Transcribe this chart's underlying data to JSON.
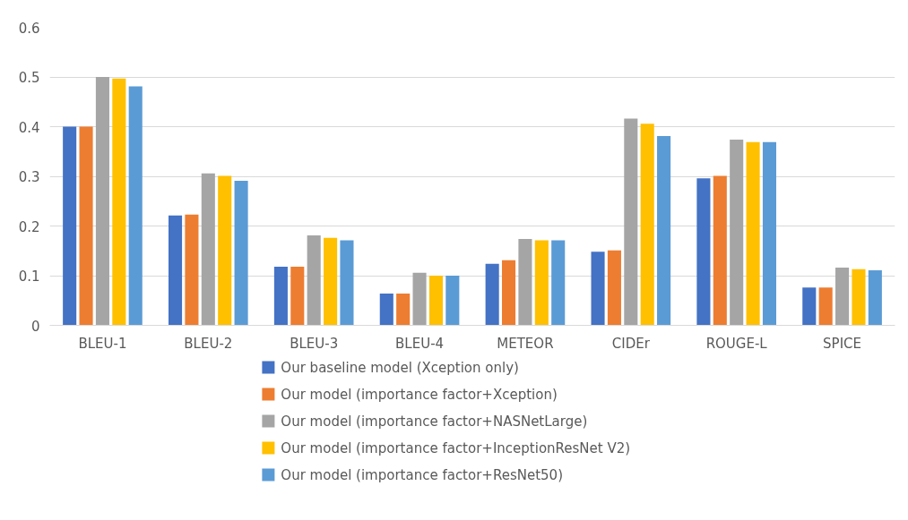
{
  "chart_data": {
    "type": "bar",
    "categories": [
      "BLEU-1",
      "BLEU-2",
      "BLEU-3",
      "BLEU-4",
      "METEOR",
      "CIDEr",
      "ROUGE-L",
      "SPICE"
    ],
    "series": [
      {
        "name": "Our baseline model (Xception only)",
        "color": "#4472c4",
        "values": [
          0.4,
          0.221,
          0.118,
          0.064,
          0.124,
          0.148,
          0.296,
          0.076
        ]
      },
      {
        "name": "Our model (importance factor+Xception)",
        "color": "#ed7d31",
        "values": [
          0.4,
          0.223,
          0.118,
          0.064,
          0.131,
          0.151,
          0.301,
          0.076
        ]
      },
      {
        "name": "Our model (importance factor+NASNetLarge)",
        "color": "#a5a5a5",
        "values": [
          0.5,
          0.306,
          0.181,
          0.106,
          0.174,
          0.416,
          0.374,
          0.116
        ]
      },
      {
        "name": "Our model (importance factor+InceptionResNet V2)",
        "color": "#ffc000",
        "values": [
          0.497,
          0.301,
          0.176,
          0.1,
          0.171,
          0.406,
          0.369,
          0.113
        ]
      },
      {
        "name": "Our model (importance factor+ResNet50)",
        "color": "#5b9bd5",
        "values": [
          0.481,
          0.291,
          0.171,
          0.1,
          0.171,
          0.381,
          0.369,
          0.111
        ]
      }
    ],
    "ylim": [
      0,
      0.6
    ],
    "yticks": [
      0,
      0.1,
      0.2,
      0.3,
      0.4,
      0.5,
      0.6
    ],
    "grid": "y",
    "legend": "bottom"
  }
}
